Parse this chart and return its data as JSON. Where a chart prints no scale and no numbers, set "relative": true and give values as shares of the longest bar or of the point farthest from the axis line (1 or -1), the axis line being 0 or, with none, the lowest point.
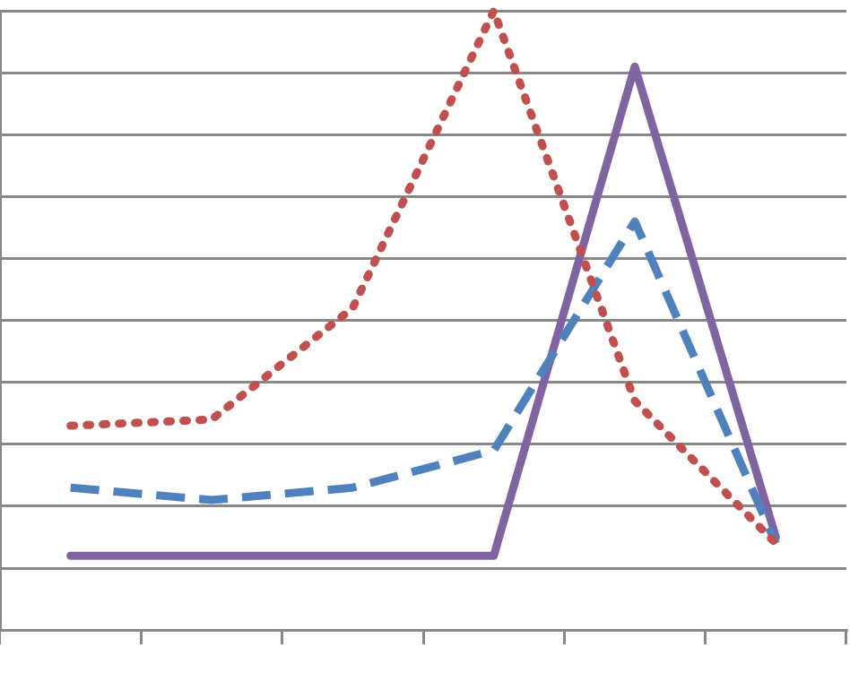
{
  "chart_data": {
    "type": "line",
    "relative": true,
    "grid": "y",
    "legend": false,
    "marker": "none",
    "categories": [
      null,
      null,
      null,
      null,
      null,
      null
    ],
    "series": [
      {
        "color": "#c0504d",
        "line_style": "dotted",
        "values": [
          0.33,
          0.34,
          0.52,
          1,
          0.37,
          0.14
        ]
      },
      {
        "color": "#4f81bd",
        "line_style": "dashed",
        "values": [
          0.23,
          0.21,
          0.23,
          0.29,
          0.66,
          0.14
        ]
      },
      {
        "color": "#8064a2",
        "line_style": "solid",
        "values": [
          0.12,
          0.12,
          0.12,
          0.12,
          0.91,
          0.15
        ]
      }
    ]
  }
}
